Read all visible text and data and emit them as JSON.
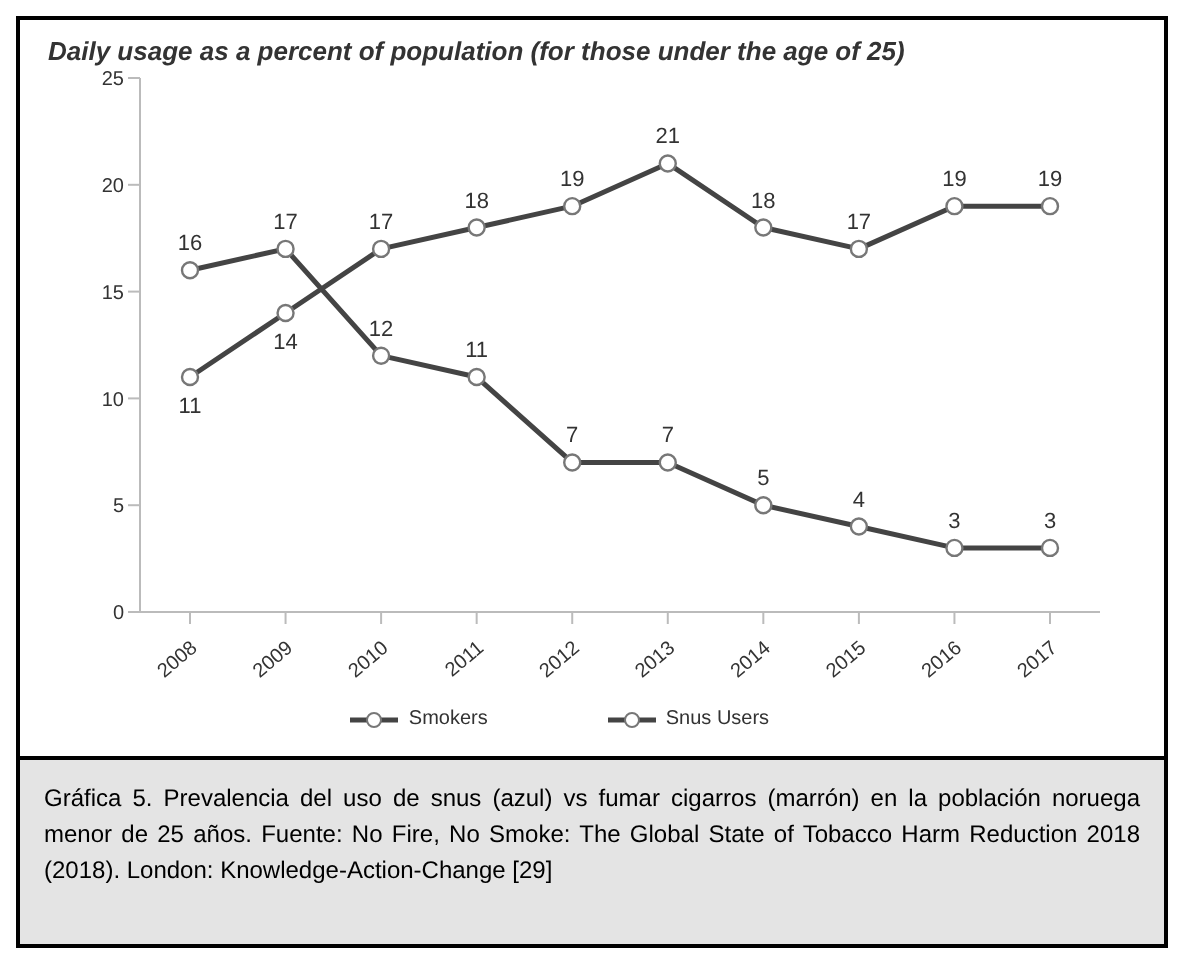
{
  "chart_data": {
    "type": "line",
    "title": "Daily usage as a percent of population (for those under the age of 25)",
    "categories": [
      "2008",
      "2009",
      "2010",
      "2011",
      "2012",
      "2013",
      "2014",
      "2015",
      "2016",
      "2017"
    ],
    "series": [
      {
        "name": "Smokers",
        "color": "#444444",
        "values": [
          16,
          17,
          12,
          11,
          7,
          7,
          5,
          4,
          3,
          3
        ]
      },
      {
        "name": "Snus Users",
        "color": "#444444",
        "values": [
          11,
          14,
          17,
          18,
          19,
          21,
          18,
          17,
          19,
          19
        ]
      }
    ],
    "ylim": [
      0,
      25
    ],
    "yticks": [
      0,
      5,
      10,
      15,
      20,
      25
    ],
    "grid": false,
    "legend": "bottom",
    "marker": "circle",
    "line_style": "solid",
    "data_labels": true,
    "annotations": [
      "Gráfica 5. Prevalencia del uso de snus (azul) vs fumar cigarros (marrón) en la población noruega menor de 25 años. Fuente: No Fire, No Smoke: The Global State of Tobacco Harm Reduction 2018 (2018). London: Knowledge-Action-Change [29]"
    ]
  }
}
